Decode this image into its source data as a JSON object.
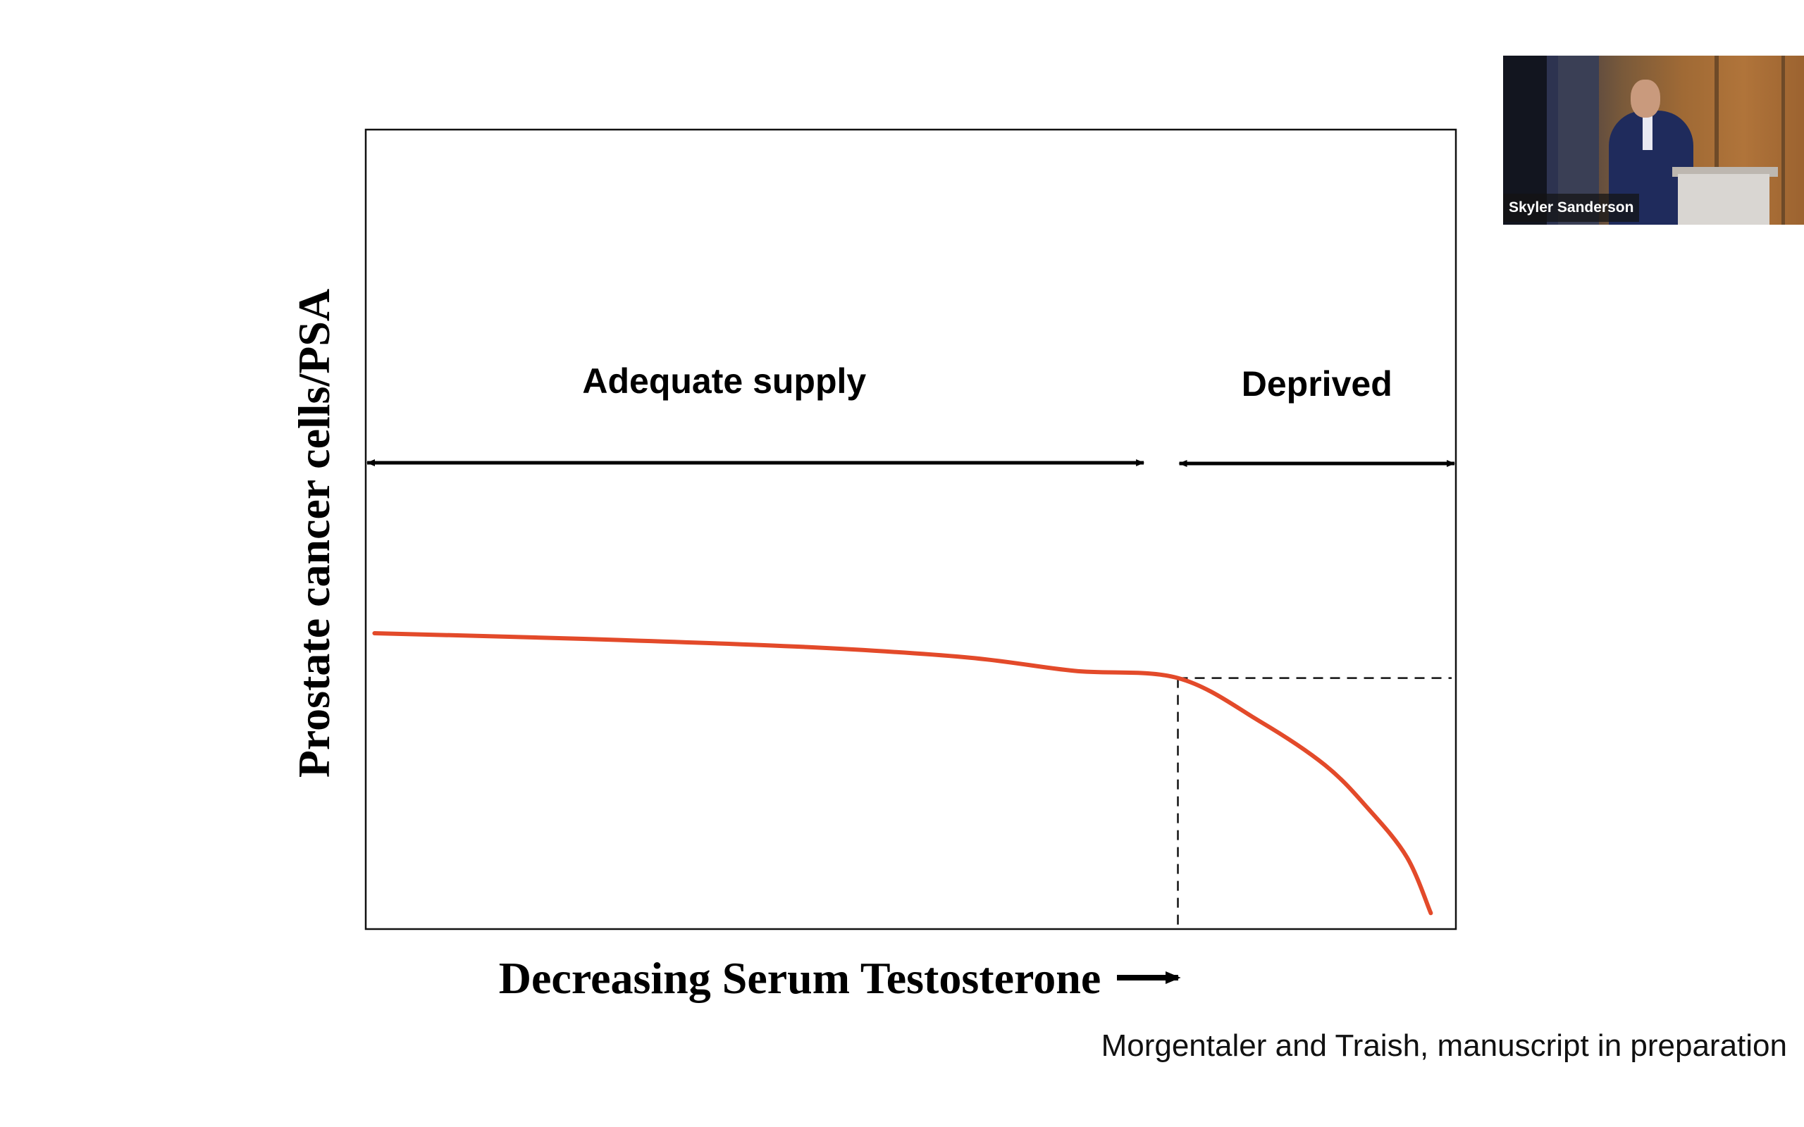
{
  "slide": {
    "citation": "Morgentaler and Traish, manuscript in preparation"
  },
  "presenter": {
    "name": "Skyler Sanderson"
  },
  "chart_data": {
    "type": "line",
    "title": "",
    "xlabel": "Decreasing Serum Testosterone",
    "xlabel_arrow": "right-arrow",
    "ylabel": "Prostate cancer cells/PSA",
    "xlim": [
      0,
      100
    ],
    "ylim": [
      0,
      100
    ],
    "grid": false,
    "regions": [
      {
        "label": "Adequate supply",
        "x_range": [
          0,
          71.5
        ]
      },
      {
        "label": "Deprived",
        "x_range": [
          74.5,
          100
        ]
      }
    ],
    "series": [
      {
        "name": "Prostate cancer cells/PSA",
        "color": "#e34a2a",
        "x": [
          0.8,
          20,
          40,
          55,
          65,
          74.5,
          82,
          88,
          92,
          95.5,
          97.7
        ],
        "y": [
          37,
          36.3,
          35.3,
          34,
          32.3,
          31.4,
          26,
          20.5,
          15,
          9,
          2
        ]
      }
    ],
    "reference_lines": [
      {
        "orientation": "vertical",
        "x": 74.5,
        "y_range": [
          0,
          31.4
        ],
        "style": "dashed"
      },
      {
        "orientation": "horizontal",
        "y": 31.4,
        "x_range": [
          74.5,
          100
        ],
        "style": "dashed"
      }
    ]
  },
  "colors": {
    "curve": "#e34a2a",
    "axis": "#111111",
    "text": "#000000"
  }
}
